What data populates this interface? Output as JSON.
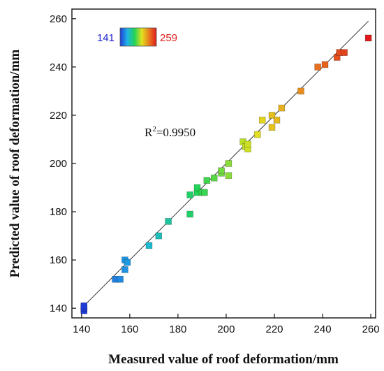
{
  "chart_data": {
    "type": "scatter",
    "xlabel": "Measured value of roof deformation/mm",
    "ylabel": "Predicted value of roof deformation/mm",
    "xlim": [
      136,
      262
    ],
    "ylim": [
      136,
      264
    ],
    "xticks": [
      "140",
      "160",
      "180",
      "200",
      "220",
      "240",
      "260"
    ],
    "yticks": [
      "140",
      "160",
      "180",
      "200",
      "220",
      "240",
      "260"
    ],
    "fit_line": {
      "x": [
        141,
        259
      ],
      "y": [
        141,
        259
      ]
    },
    "annotation": {
      "base": "R",
      "sup": "2",
      "rest": "=0.9950"
    },
    "colorbar": {
      "min_label": "141",
      "max_label": "259",
      "min": 141,
      "max": 259,
      "colors": [
        "#1f3cd6",
        "#1fb4e6",
        "#22d456",
        "#e2e21e",
        "#e87a1e",
        "#e01a1a"
      ]
    },
    "points": [
      {
        "x": 141,
        "y": 139
      },
      {
        "x": 141,
        "y": 140
      },
      {
        "x": 141,
        "y": 141
      },
      {
        "x": 154,
        "y": 152
      },
      {
        "x": 156,
        "y": 152
      },
      {
        "x": 158,
        "y": 156
      },
      {
        "x": 158,
        "y": 160
      },
      {
        "x": 159,
        "y": 159
      },
      {
        "x": 168,
        "y": 166
      },
      {
        "x": 172,
        "y": 170
      },
      {
        "x": 176,
        "y": 176
      },
      {
        "x": 185,
        "y": 179
      },
      {
        "x": 185,
        "y": 187
      },
      {
        "x": 188,
        "y": 188
      },
      {
        "x": 188,
        "y": 190
      },
      {
        "x": 190,
        "y": 188
      },
      {
        "x": 191,
        "y": 188
      },
      {
        "x": 192,
        "y": 193
      },
      {
        "x": 195,
        "y": 194
      },
      {
        "x": 198,
        "y": 196
      },
      {
        "x": 198,
        "y": 197
      },
      {
        "x": 201,
        "y": 195
      },
      {
        "x": 201,
        "y": 200
      },
      {
        "x": 207,
        "y": 209
      },
      {
        "x": 208,
        "y": 207
      },
      {
        "x": 209,
        "y": 206
      },
      {
        "x": 209,
        "y": 208
      },
      {
        "x": 213,
        "y": 212
      },
      {
        "x": 215,
        "y": 218
      },
      {
        "x": 219,
        "y": 215
      },
      {
        "x": 219,
        "y": 220
      },
      {
        "x": 221,
        "y": 218
      },
      {
        "x": 223,
        "y": 223
      },
      {
        "x": 231,
        "y": 230
      },
      {
        "x": 238,
        "y": 240
      },
      {
        "x": 241,
        "y": 241
      },
      {
        "x": 246,
        "y": 244
      },
      {
        "x": 247,
        "y": 246
      },
      {
        "x": 249,
        "y": 246
      },
      {
        "x": 259,
        "y": 252
      }
    ]
  }
}
